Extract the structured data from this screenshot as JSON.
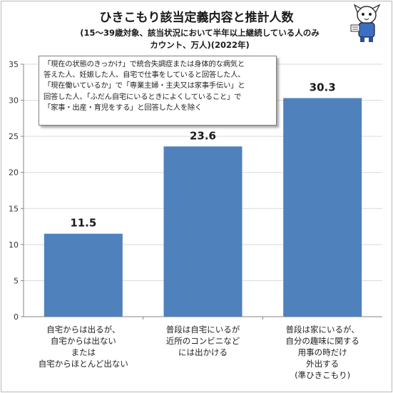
{
  "title": "ひきこもり該当定義内容と推計人数",
  "subtitle_line1": "(15～39歳対象、該当状況において半年以上継続している人のみ",
  "subtitle_line2": "カウント、万人)(2022年)",
  "note": "「現在の状態のきっかけ」で統合失調症または身体的な病気と\n答えた人、妊娠した人、自宅で仕事をしていると回答した人、\n「現在働いているか」で「専業主婦・主夫又は家事手伝い」と\n回答した人、「ふだん自宅にいるときによくしていること」で\n「家事・出産・育児をする」と回答した人を除く",
  "colors": {
    "bar": "#4F81BD",
    "grid": "#d9d9d9",
    "axis": "#868686"
  },
  "chart_data": {
    "type": "bar",
    "categories": [
      "自宅からは出るが、\n自宅からは出ない\nまたは\n自宅からほとんど出ない",
      "普段は自宅にいるが\n近所のコンビニなど\nには出かける",
      "普段は家にいるが、\n自分の趣味に関する\n用事の時だけ\n外出する\n(準ひきこもり)"
    ],
    "values": [
      11.5,
      23.6,
      30.3
    ],
    "value_labels": [
      "11.5",
      "23.6",
      "30.3"
    ],
    "ylim": [
      0,
      35
    ],
    "yticks": [
      0,
      5,
      10,
      15,
      20,
      25,
      30,
      35
    ],
    "grid": true,
    "legend": "none"
  }
}
